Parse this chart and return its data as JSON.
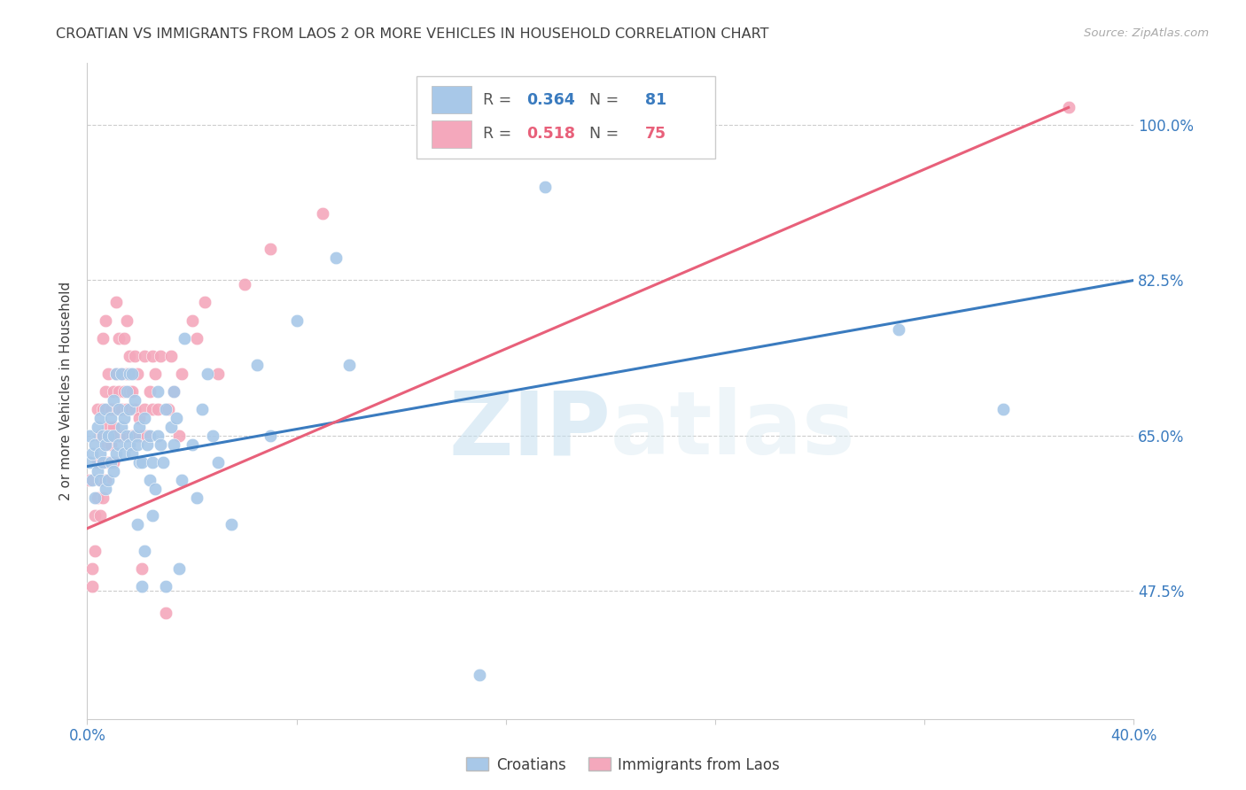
{
  "title": "CROATIAN VS IMMIGRANTS FROM LAOS 2 OR MORE VEHICLES IN HOUSEHOLD CORRELATION CHART",
  "source": "Source: ZipAtlas.com",
  "ylabel": "2 or more Vehicles in Household",
  "xlim": [
    0.0,
    0.4
  ],
  "ylim": [
    0.33,
    1.07
  ],
  "xtick_positions": [
    0.0,
    0.08,
    0.16,
    0.24,
    0.32,
    0.4
  ],
  "xtick_labels": [
    "0.0%",
    "",
    "",
    "",
    "",
    "40.0%"
  ],
  "ytick_positions": [
    0.475,
    0.65,
    0.825,
    1.0
  ],
  "ytick_labels": [
    "47.5%",
    "65.0%",
    "82.5%",
    "100.0%"
  ],
  "blue_R": 0.364,
  "blue_N": 81,
  "pink_R": 0.518,
  "pink_N": 75,
  "blue_color": "#a8c8e8",
  "pink_color": "#f4a8bc",
  "blue_line_color": "#3a7bbf",
  "pink_line_color": "#e8607a",
  "blue_reg_line": [
    [
      0.0,
      0.615
    ],
    [
      0.4,
      0.825
    ]
  ],
  "pink_reg_line": [
    [
      0.0,
      0.545
    ],
    [
      0.375,
      1.02
    ]
  ],
  "blue_scatter": [
    [
      0.001,
      0.62
    ],
    [
      0.001,
      0.65
    ],
    [
      0.002,
      0.6
    ],
    [
      0.002,
      0.63
    ],
    [
      0.003,
      0.58
    ],
    [
      0.003,
      0.64
    ],
    [
      0.004,
      0.61
    ],
    [
      0.004,
      0.66
    ],
    [
      0.005,
      0.6
    ],
    [
      0.005,
      0.63
    ],
    [
      0.005,
      0.67
    ],
    [
      0.006,
      0.62
    ],
    [
      0.006,
      0.65
    ],
    [
      0.007,
      0.59
    ],
    [
      0.007,
      0.64
    ],
    [
      0.007,
      0.68
    ],
    [
      0.008,
      0.6
    ],
    [
      0.008,
      0.65
    ],
    [
      0.009,
      0.62
    ],
    [
      0.009,
      0.67
    ],
    [
      0.01,
      0.61
    ],
    [
      0.01,
      0.65
    ],
    [
      0.01,
      0.69
    ],
    [
      0.011,
      0.63
    ],
    [
      0.011,
      0.72
    ],
    [
      0.012,
      0.64
    ],
    [
      0.012,
      0.68
    ],
    [
      0.013,
      0.66
    ],
    [
      0.013,
      0.72
    ],
    [
      0.014,
      0.63
    ],
    [
      0.014,
      0.67
    ],
    [
      0.015,
      0.65
    ],
    [
      0.015,
      0.7
    ],
    [
      0.016,
      0.64
    ],
    [
      0.016,
      0.68
    ],
    [
      0.016,
      0.72
    ],
    [
      0.017,
      0.63
    ],
    [
      0.017,
      0.72
    ],
    [
      0.018,
      0.65
    ],
    [
      0.018,
      0.69
    ],
    [
      0.019,
      0.55
    ],
    [
      0.019,
      0.64
    ],
    [
      0.02,
      0.62
    ],
    [
      0.02,
      0.66
    ],
    [
      0.021,
      0.48
    ],
    [
      0.021,
      0.62
    ],
    [
      0.022,
      0.52
    ],
    [
      0.022,
      0.67
    ],
    [
      0.023,
      0.64
    ],
    [
      0.024,
      0.6
    ],
    [
      0.024,
      0.65
    ],
    [
      0.025,
      0.56
    ],
    [
      0.025,
      0.62
    ],
    [
      0.026,
      0.59
    ],
    [
      0.027,
      0.65
    ],
    [
      0.027,
      0.7
    ],
    [
      0.028,
      0.64
    ],
    [
      0.029,
      0.62
    ],
    [
      0.03,
      0.48
    ],
    [
      0.03,
      0.68
    ],
    [
      0.032,
      0.66
    ],
    [
      0.033,
      0.64
    ],
    [
      0.033,
      0.7
    ],
    [
      0.034,
      0.67
    ],
    [
      0.035,
      0.5
    ],
    [
      0.036,
      0.6
    ],
    [
      0.037,
      0.76
    ],
    [
      0.04,
      0.64
    ],
    [
      0.042,
      0.58
    ],
    [
      0.044,
      0.68
    ],
    [
      0.046,
      0.72
    ],
    [
      0.048,
      0.65
    ],
    [
      0.05,
      0.62
    ],
    [
      0.055,
      0.55
    ],
    [
      0.065,
      0.73
    ],
    [
      0.07,
      0.65
    ],
    [
      0.08,
      0.78
    ],
    [
      0.095,
      0.85
    ],
    [
      0.1,
      0.73
    ],
    [
      0.15,
      0.38
    ],
    [
      0.175,
      0.93
    ],
    [
      0.31,
      0.77
    ],
    [
      0.35,
      0.68
    ]
  ],
  "pink_scatter": [
    [
      0.001,
      0.6
    ],
    [
      0.002,
      0.48
    ],
    [
      0.002,
      0.5
    ],
    [
      0.003,
      0.52
    ],
    [
      0.003,
      0.56
    ],
    [
      0.004,
      0.58
    ],
    [
      0.004,
      0.62
    ],
    [
      0.004,
      0.68
    ],
    [
      0.005,
      0.56
    ],
    [
      0.005,
      0.6
    ],
    [
      0.005,
      0.65
    ],
    [
      0.006,
      0.58
    ],
    [
      0.006,
      0.62
    ],
    [
      0.006,
      0.68
    ],
    [
      0.006,
      0.76
    ],
    [
      0.007,
      0.6
    ],
    [
      0.007,
      0.64
    ],
    [
      0.007,
      0.7
    ],
    [
      0.007,
      0.78
    ],
    [
      0.008,
      0.62
    ],
    [
      0.008,
      0.66
    ],
    [
      0.008,
      0.72
    ],
    [
      0.009,
      0.64
    ],
    [
      0.009,
      0.68
    ],
    [
      0.01,
      0.62
    ],
    [
      0.01,
      0.66
    ],
    [
      0.01,
      0.7
    ],
    [
      0.011,
      0.68
    ],
    [
      0.011,
      0.72
    ],
    [
      0.011,
      0.8
    ],
    [
      0.012,
      0.65
    ],
    [
      0.012,
      0.7
    ],
    [
      0.012,
      0.76
    ],
    [
      0.013,
      0.68
    ],
    [
      0.013,
      0.72
    ],
    [
      0.014,
      0.65
    ],
    [
      0.014,
      0.7
    ],
    [
      0.014,
      0.76
    ],
    [
      0.015,
      0.68
    ],
    [
      0.015,
      0.72
    ],
    [
      0.015,
      0.78
    ],
    [
      0.016,
      0.7
    ],
    [
      0.016,
      0.74
    ],
    [
      0.017,
      0.65
    ],
    [
      0.017,
      0.7
    ],
    [
      0.018,
      0.68
    ],
    [
      0.018,
      0.74
    ],
    [
      0.019,
      0.65
    ],
    [
      0.019,
      0.72
    ],
    [
      0.02,
      0.67
    ],
    [
      0.021,
      0.5
    ],
    [
      0.021,
      0.65
    ],
    [
      0.022,
      0.68
    ],
    [
      0.022,
      0.74
    ],
    [
      0.023,
      0.65
    ],
    [
      0.024,
      0.7
    ],
    [
      0.025,
      0.68
    ],
    [
      0.025,
      0.74
    ],
    [
      0.026,
      0.72
    ],
    [
      0.027,
      0.68
    ],
    [
      0.028,
      0.74
    ],
    [
      0.03,
      0.45
    ],
    [
      0.031,
      0.68
    ],
    [
      0.032,
      0.74
    ],
    [
      0.033,
      0.7
    ],
    [
      0.035,
      0.65
    ],
    [
      0.036,
      0.72
    ],
    [
      0.04,
      0.78
    ],
    [
      0.042,
      0.76
    ],
    [
      0.045,
      0.8
    ],
    [
      0.05,
      0.72
    ],
    [
      0.06,
      0.82
    ],
    [
      0.07,
      0.86
    ],
    [
      0.09,
      0.9
    ],
    [
      0.375,
      1.02
    ]
  ],
  "watermark_zip": "ZIP",
  "watermark_atlas": "atlas",
  "background_color": "#ffffff",
  "grid_color": "#cccccc",
  "tick_color": "#3a7bbf",
  "title_color": "#404040",
  "source_color": "#aaaaaa",
  "figsize": [
    14.06,
    8.92
  ],
  "dpi": 100
}
